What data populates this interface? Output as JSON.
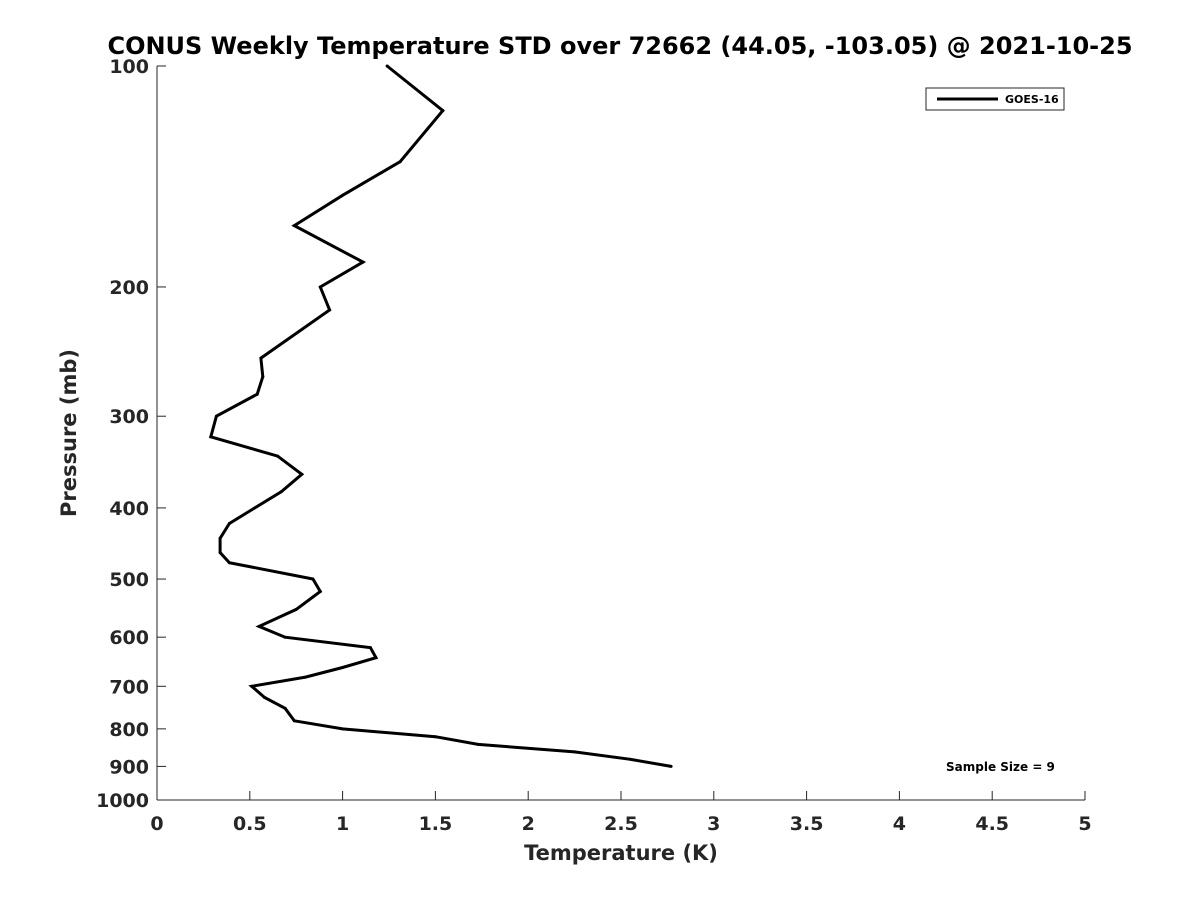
{
  "chart_data": {
    "type": "line",
    "title": "CONUS Weekly Temperature STD over 72662 (44.05, -103.05) @ 2021-10-25",
    "xlabel": "Temperature (K)",
    "ylabel": "Pressure (mb)",
    "xlim": [
      0,
      5
    ],
    "ylim": [
      100,
      1000
    ],
    "y_scale": "log",
    "y_reversed": true,
    "grid": false,
    "legend_position": "top-right",
    "x_ticks": [
      "0",
      "0.5",
      "1",
      "1.5",
      "2",
      "2.5",
      "3",
      "3.5",
      "4",
      "4.5",
      "5"
    ],
    "y_ticks": [
      "100",
      "200",
      "300",
      "400",
      "500",
      "600",
      "700",
      "800",
      "900",
      "1000"
    ],
    "series": [
      {
        "name": "GOES-16",
        "color": "#000000",
        "points": [
          {
            "x": 1.24,
            "y": 100
          },
          {
            "x": 1.54,
            "y": 115
          },
          {
            "x": 1.31,
            "y": 135
          },
          {
            "x": 1.0,
            "y": 150
          },
          {
            "x": 0.74,
            "y": 165
          },
          {
            "x": 1.11,
            "y": 185
          },
          {
            "x": 0.88,
            "y": 200
          },
          {
            "x": 0.93,
            "y": 215
          },
          {
            "x": 0.56,
            "y": 250
          },
          {
            "x": 0.57,
            "y": 265
          },
          {
            "x": 0.54,
            "y": 280
          },
          {
            "x": 0.32,
            "y": 300
          },
          {
            "x": 0.29,
            "y": 320
          },
          {
            "x": 0.65,
            "y": 340
          },
          {
            "x": 0.78,
            "y": 360
          },
          {
            "x": 0.67,
            "y": 380
          },
          {
            "x": 0.39,
            "y": 420
          },
          {
            "x": 0.34,
            "y": 440
          },
          {
            "x": 0.34,
            "y": 460
          },
          {
            "x": 0.39,
            "y": 475
          },
          {
            "x": 0.84,
            "y": 500
          },
          {
            "x": 0.88,
            "y": 520
          },
          {
            "x": 0.75,
            "y": 550
          },
          {
            "x": 0.55,
            "y": 580
          },
          {
            "x": 0.69,
            "y": 600
          },
          {
            "x": 1.15,
            "y": 620
          },
          {
            "x": 1.18,
            "y": 640
          },
          {
            "x": 1.0,
            "y": 660
          },
          {
            "x": 0.8,
            "y": 680
          },
          {
            "x": 0.51,
            "y": 700
          },
          {
            "x": 0.58,
            "y": 725
          },
          {
            "x": 0.69,
            "y": 750
          },
          {
            "x": 0.74,
            "y": 780
          },
          {
            "x": 1.0,
            "y": 800
          },
          {
            "x": 1.5,
            "y": 820
          },
          {
            "x": 1.73,
            "y": 840
          },
          {
            "x": 2.25,
            "y": 860
          },
          {
            "x": 2.55,
            "y": 880
          },
          {
            "x": 2.77,
            "y": 900
          }
        ]
      }
    ],
    "annotations": [
      "Sample Size = 9"
    ]
  }
}
